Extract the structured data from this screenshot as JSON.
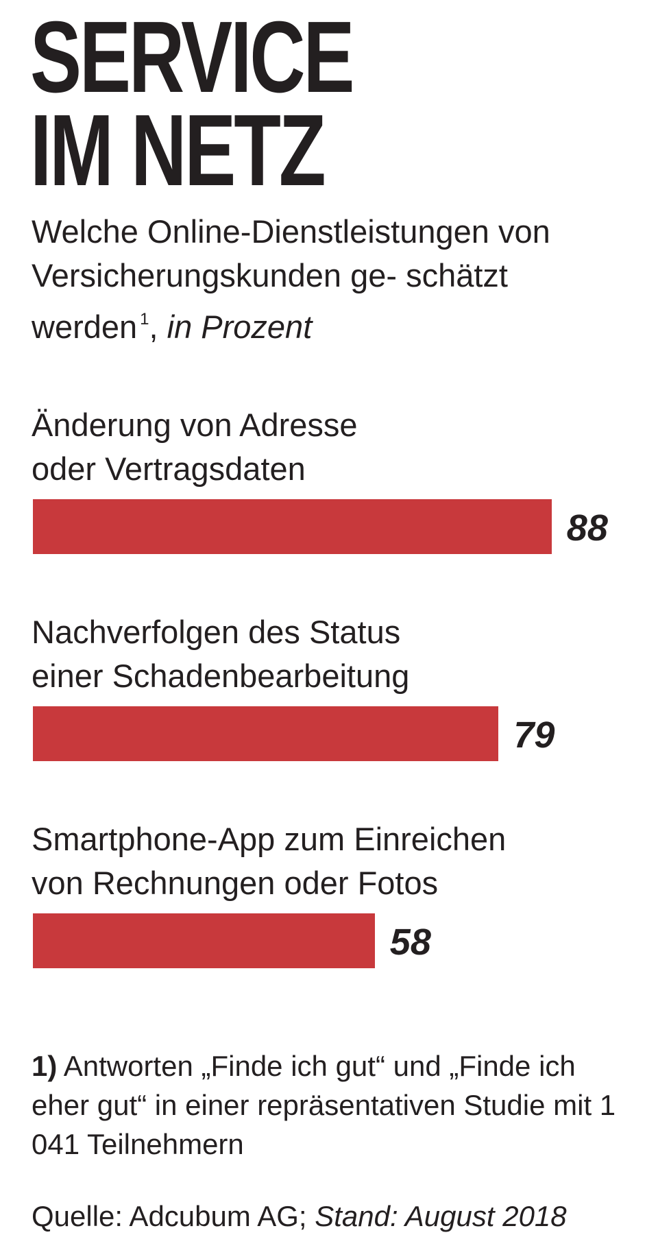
{
  "title_line1": "SERVICE",
  "title_line2": "IM NETZ",
  "subtitle": {
    "text": "Welche Online-Dienstleistungen von Versicherungskunden ge- schätzt werden",
    "footnote_mark": "1",
    "separator": ",",
    "unit": "in Prozent"
  },
  "footnote": {
    "marker": "1)",
    "text": "Antworten „Finde ich gut“ und „Finde ich eher gut“ in einer repräsentativen Studie mit 1 041 Teilnehmern"
  },
  "source": {
    "label": "Quelle: Adcubum AG;",
    "date": "Stand: August 2018"
  },
  "colors": {
    "bar": "#c8393c",
    "text": "#231f20",
    "background": "#ffffff"
  },
  "chart_data": {
    "type": "bar",
    "orientation": "horizontal",
    "categories": [
      [
        "Änderung von Adresse",
        "oder Vertragsdaten"
      ],
      [
        "Nachverfolgen des Status",
        "einer Schadenbearbeitung"
      ],
      [
        "Smartphone-App zum Einreichen",
        "von Rechnungen oder Fotos"
      ]
    ],
    "values": [
      88,
      79,
      58
    ],
    "value_labels": [
      "88",
      "79",
      "58"
    ],
    "xlim": [
      0,
      100
    ],
    "grid": false,
    "legend": "none"
  }
}
